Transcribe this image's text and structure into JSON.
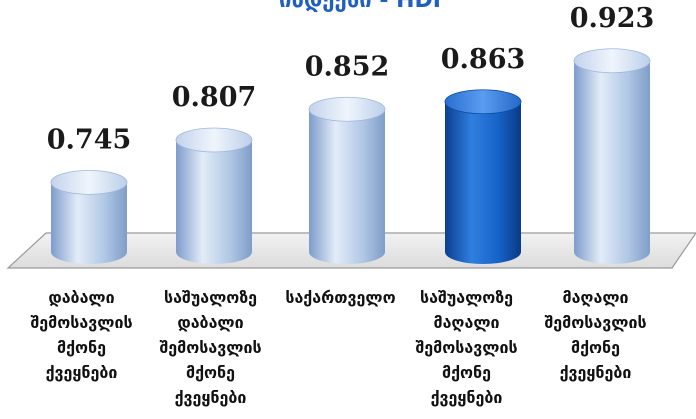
{
  "title": "ინდექსი - HDI",
  "chart_data": {
    "type": "bar",
    "title": "ინდექსი - HDI",
    "categories": [
      "დაბალი შემოსავლის მქონე ქვეყნები",
      "საშუალოზე დაბალი შემოსავლის მქონე ქვეყნები",
      "საქართველო",
      "საშუალოზე მაღალი შემოსავლის მქონე ქვეყნები",
      "მაღალი შემოსავლის მქონე ქვეყნები"
    ],
    "category_lines": [
      [
        "დაბალი",
        "შემოსავლის",
        "მქონე",
        "ქვეყნები"
      ],
      [
        "საშუალოზე",
        "დაბალი",
        "შემოსავლის",
        "მქონე",
        "ქვეყნები"
      ],
      [
        "საქართველო"
      ],
      [
        "საშუალოზე",
        "მაღალი",
        "შემოსავლის",
        "მქონე",
        "ქვეყნები"
      ],
      [
        "მაღალი",
        "შემოსავლის",
        "მქონე",
        "ქვეყნები"
      ]
    ],
    "values": [
      0.745,
      0.807,
      0.852,
      0.863,
      0.923
    ],
    "value_labels": [
      "0.745",
      "0.807",
      "0.852",
      "0.863",
      "0.923"
    ],
    "highlight_index": 3,
    "colors": {
      "bar": "#a9c3e6",
      "highlight": "#1565c8"
    },
    "xlabel": "",
    "ylabel": "",
    "grid": false,
    "legend": "none"
  }
}
